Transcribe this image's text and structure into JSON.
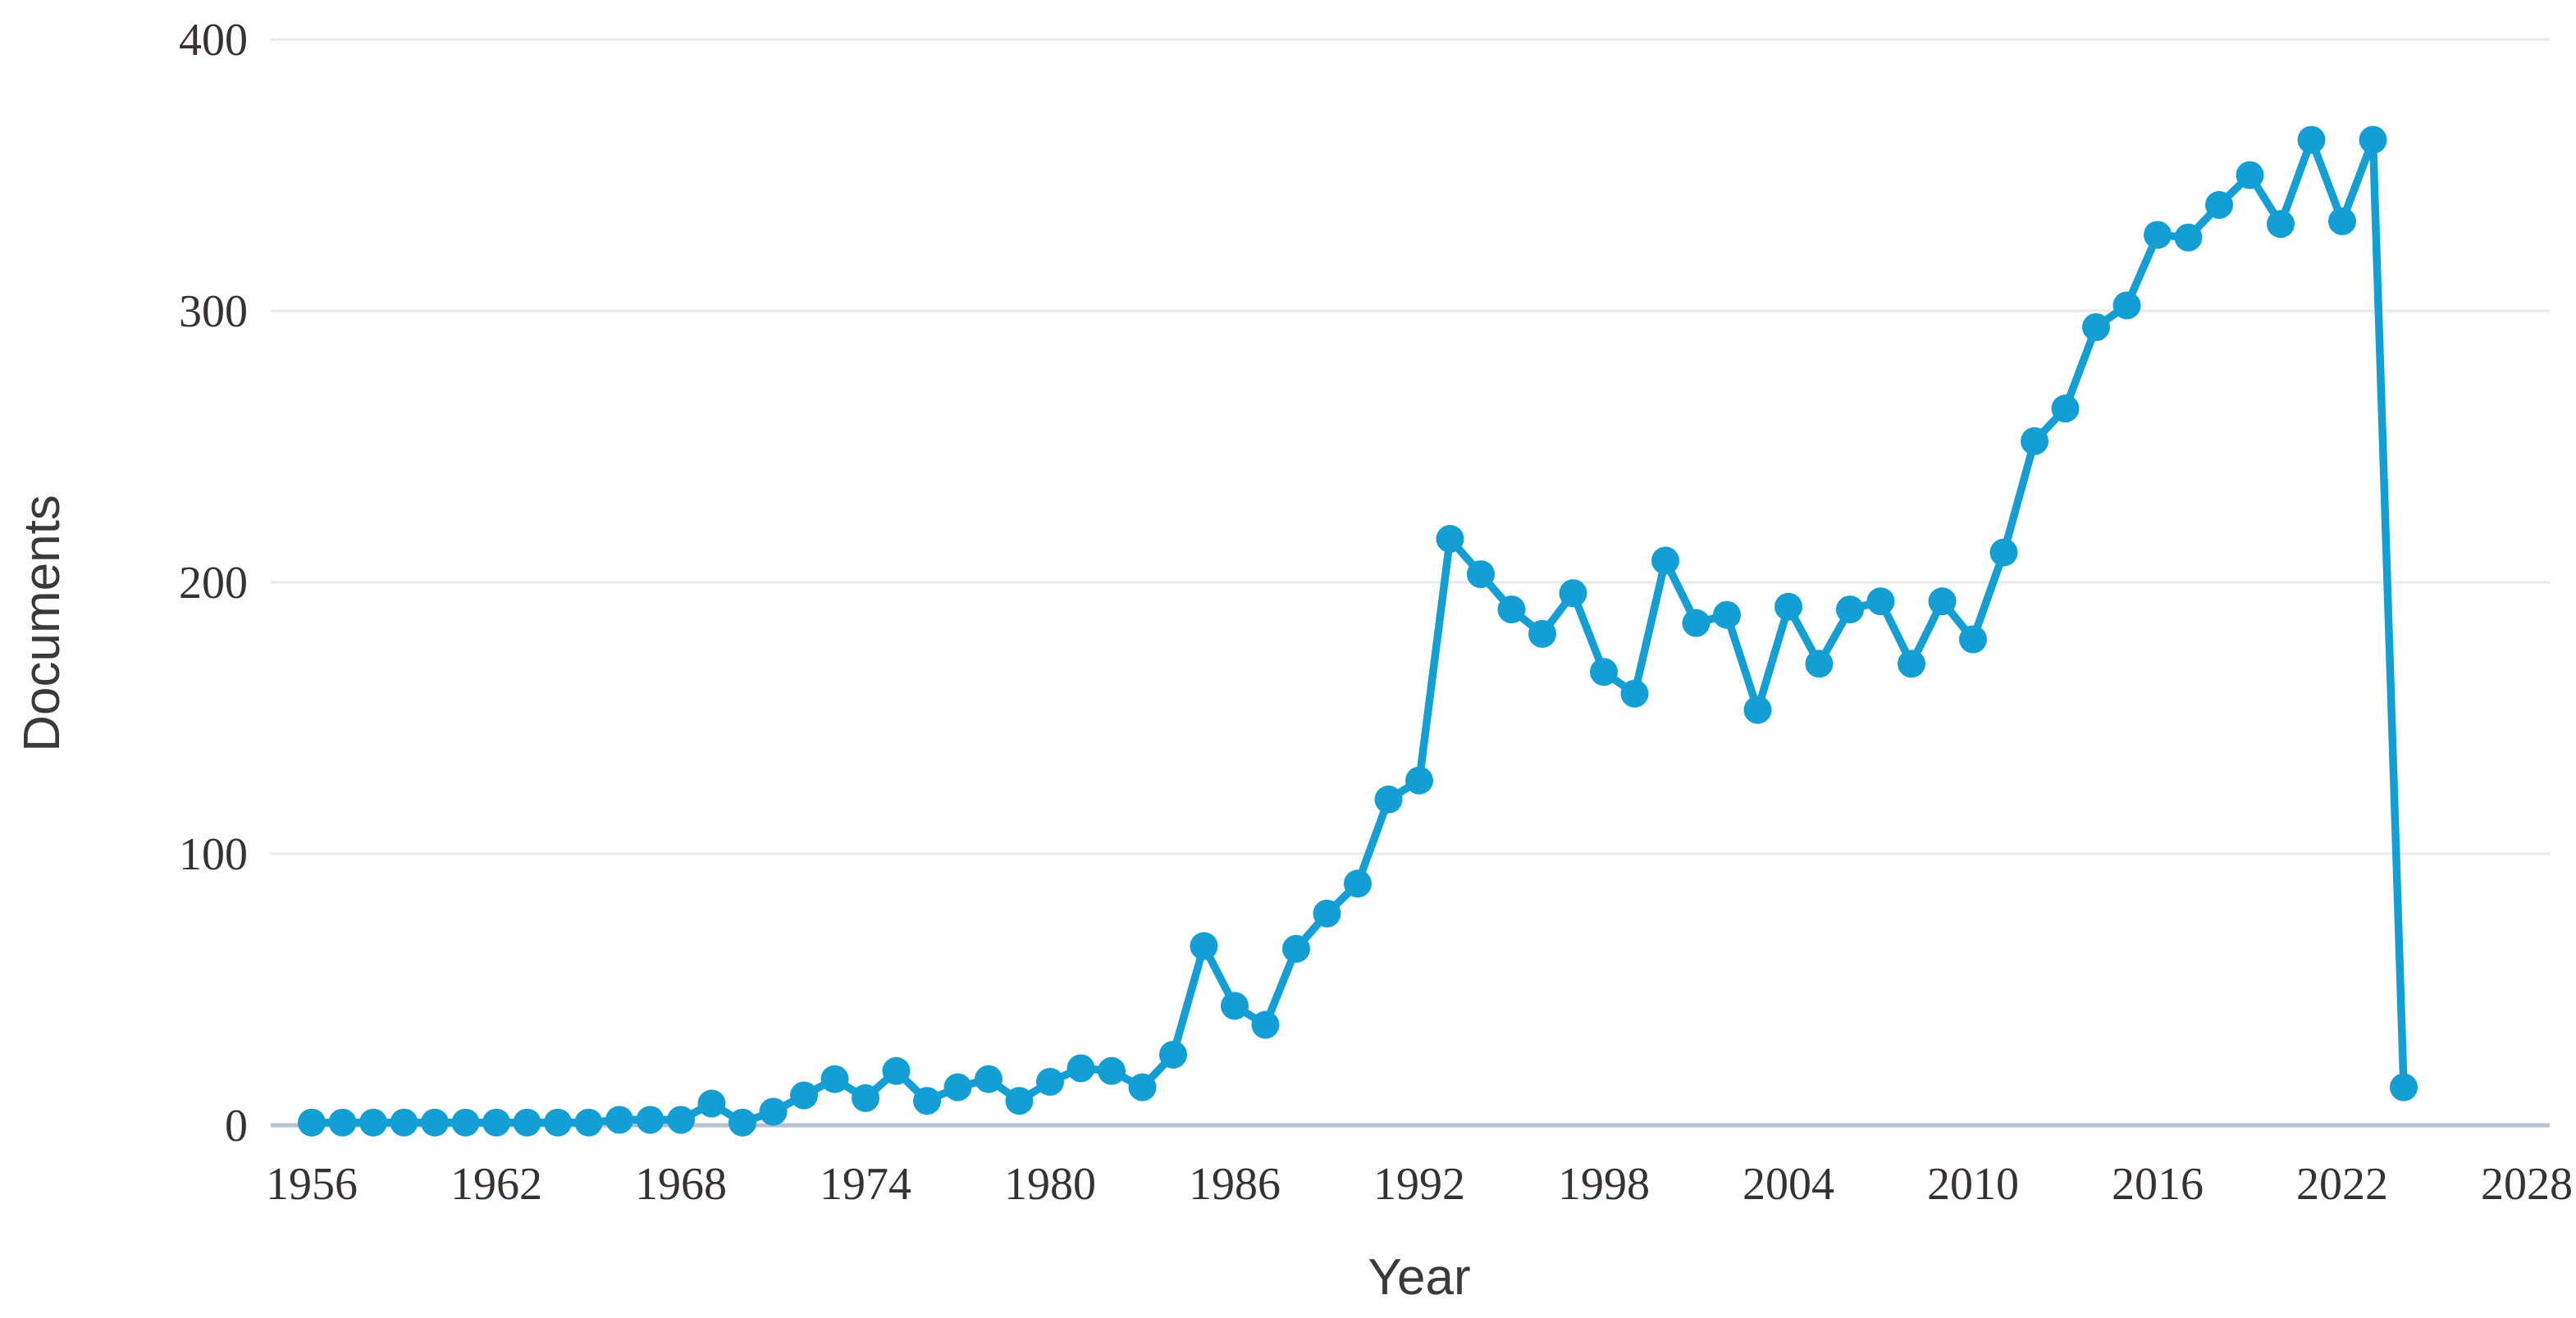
{
  "figure": {
    "background": "#ffffff",
    "accent_color": "#149fd4",
    "gridline_color": "#e9e9e9",
    "baseline_color": "#b6c0d0",
    "text_color": "#373230"
  },
  "chart_data": {
    "type": "line",
    "title": "",
    "xlabel": "Year",
    "ylabel": "Documents",
    "ylim": [
      0,
      400
    ],
    "xlim": [
      1956,
      2028
    ],
    "y_ticks": [
      0,
      100,
      200,
      300,
      400
    ],
    "x_ticks": [
      1956,
      1962,
      1968,
      1974,
      1980,
      1986,
      1992,
      1998,
      2004,
      2010,
      2016,
      2022,
      2028
    ],
    "grid": "horizontal-only",
    "legend": "none",
    "marker": "circle",
    "series_name": "Documents",
    "line_color": "#149fd4",
    "x": [
      1956,
      1957,
      1958,
      1959,
      1960,
      1961,
      1962,
      1963,
      1964,
      1965,
      1966,
      1967,
      1968,
      1969,
      1970,
      1971,
      1972,
      1973,
      1974,
      1975,
      1976,
      1977,
      1978,
      1979,
      1980,
      1981,
      1982,
      1983,
      1984,
      1985,
      1986,
      1987,
      1988,
      1989,
      1990,
      1991,
      1992,
      1993,
      1994,
      1995,
      1996,
      1997,
      1998,
      1999,
      2000,
      2001,
      2002,
      2003,
      2004,
      2005,
      2006,
      2007,
      2008,
      2009,
      2010,
      2011,
      2012,
      2013,
      2014,
      2015,
      2016,
      2017,
      2018,
      2019,
      2020,
      2021,
      2022,
      2023,
      2024
    ],
    "values": [
      1,
      1,
      1,
      1,
      1,
      1,
      1,
      1,
      1,
      1,
      2,
      2,
      2,
      8,
      1,
      5,
      11,
      17,
      10,
      20,
      9,
      14,
      17,
      9,
      16,
      21,
      20,
      14,
      26,
      66,
      44,
      37,
      65,
      78,
      89,
      120,
      127,
      216,
      203,
      190,
      181,
      196,
      167,
      159,
      208,
      185,
      188,
      153,
      191,
      170,
      190,
      193,
      170,
      193,
      179,
      211,
      252,
      264,
      294,
      302,
      328,
      327,
      339,
      350,
      332,
      363,
      333,
      363,
      14
    ]
  }
}
